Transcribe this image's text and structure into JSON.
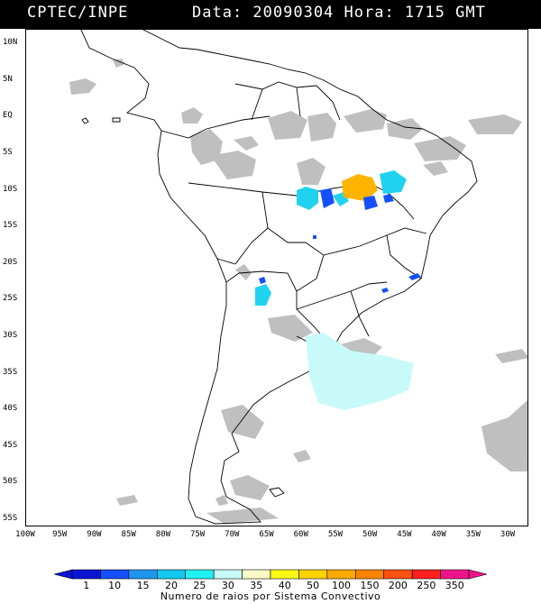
{
  "header": {
    "organization": "CPTEC/INPE",
    "date_time": "Data: 20090304 Hora: 1715 GMT"
  },
  "map": {
    "lat_labels": [
      "10N",
      "5N",
      "EQ",
      "5S",
      "10S",
      "15S",
      "20S",
      "25S",
      "30S",
      "35S",
      "40S",
      "45S",
      "50S",
      "55S"
    ],
    "lat_values": [
      10,
      5,
      0,
      -5,
      -10,
      -15,
      -20,
      -25,
      -30,
      -35,
      -40,
      -45,
      -50,
      -55
    ],
    "lon_labels": [
      "100W",
      "95W",
      "90W",
      "85W",
      "80W",
      "75W",
      "70W",
      "65W",
      "60W",
      "55W",
      "50W",
      "45W",
      "40W",
      "35W",
      "30W"
    ],
    "lon_values": [
      -100,
      -95,
      -90,
      -85,
      -80,
      -75,
      -70,
      -65,
      -60,
      -55,
      -50,
      -45,
      -40,
      -35,
      -30
    ],
    "extent": {
      "lon_min": -100,
      "lon_max": -27,
      "lat_min": -56,
      "lat_max": 12
    }
  },
  "colorbar": {
    "labels": [
      "1",
      "10",
      "15",
      "20",
      "25",
      "30",
      "35",
      "40",
      "50",
      "100",
      "150",
      "200",
      "250",
      "350"
    ],
    "colors": [
      "#0a14d2",
      "#1450ff",
      "#1e96f0",
      "#14c8f0",
      "#20f0f0",
      "#c8fafa",
      "#fafac8",
      "#fafa14",
      "#ffd200",
      "#ffaa00",
      "#ff8200",
      "#ff5014",
      "#ff1e1e",
      "#f0148c"
    ],
    "title": "Numero de raios por Sistema Convectivo"
  },
  "legend_colors": {
    "clouds": "#b4b4b4",
    "cyan_system": "#20d2f0",
    "orange_system": "#ffb400",
    "blue_system": "#1450ff",
    "light_cyan": "#c8fafa"
  }
}
